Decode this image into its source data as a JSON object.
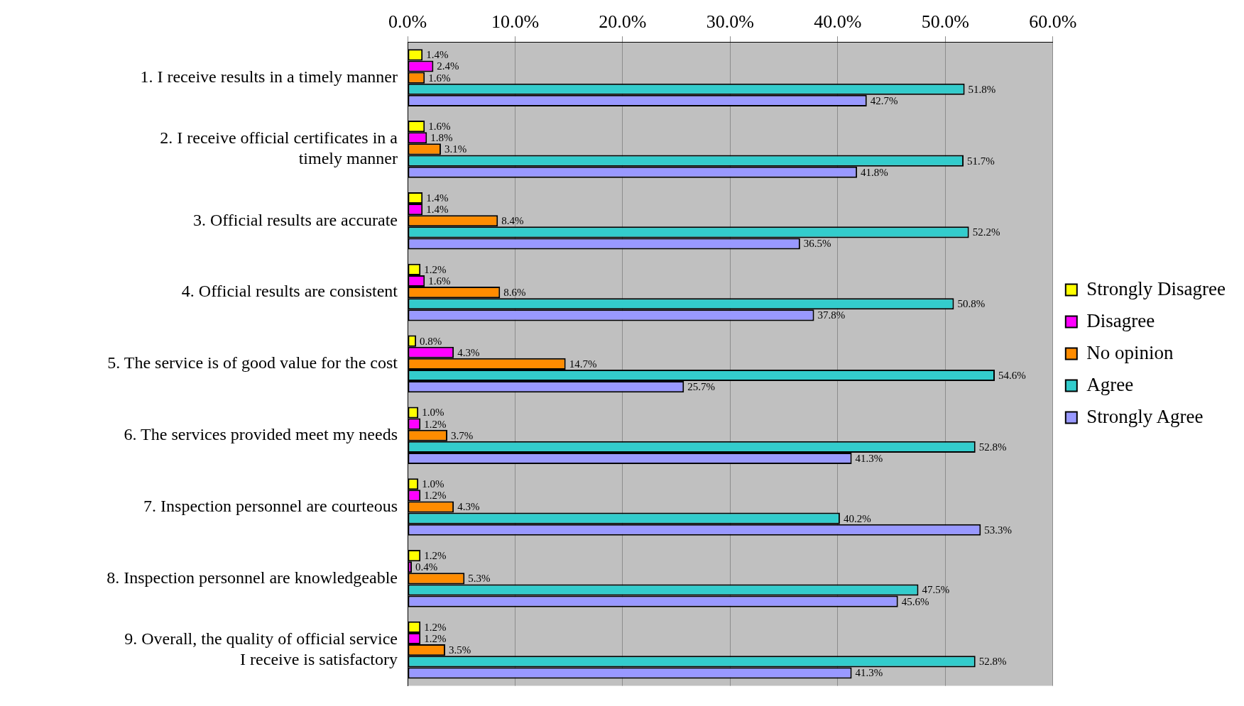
{
  "chart_data": {
    "type": "bar",
    "orientation": "horizontal",
    "categories": [
      "1. I receive results in a timely manner",
      "2. I receive official certificates in a timely manner",
      "3. Official results are accurate",
      "4. Official results are consistent",
      "5. The service is of good value for the cost",
      "6. The services provided meet my needs",
      "7. Inspection personnel are courteous",
      "8. Inspection personnel are knowledgeable",
      "9. Overall, the quality of official service I receive is satisfactory"
    ],
    "series": [
      {
        "name": "Strongly Disagree",
        "color": "#ffff00",
        "values": [
          1.4,
          1.6,
          1.4,
          1.2,
          0.8,
          1.0,
          1.0,
          1.2,
          1.2
        ],
        "value_labels": [
          "1.4%",
          "1.6%",
          "1.4%",
          "1.2%",
          "0.8%",
          "1.0%",
          "1.0%",
          "1.2%",
          "1.2%"
        ]
      },
      {
        "name": "Disagree",
        "color": "#ff00ff",
        "values": [
          2.4,
          1.8,
          1.4,
          1.6,
          4.3,
          1.2,
          1.2,
          0.4,
          1.2
        ],
        "value_labels": [
          "2.4%",
          "1.8%",
          "1.4%",
          "1.6%",
          "4.3%",
          "1.2%",
          "1.2%",
          "0.4%",
          "1.2%"
        ]
      },
      {
        "name": "No opinion",
        "color": "#ff8c00",
        "values": [
          1.6,
          3.1,
          8.4,
          8.6,
          14.7,
          3.7,
          4.3,
          5.3,
          3.5
        ],
        "value_labels": [
          "1.6%",
          "3.1%",
          "8.4%",
          "8.6%",
          "14.7%",
          "3.7%",
          "4.3%",
          "5.3%",
          "3.5%"
        ]
      },
      {
        "name": "Agree",
        "color": "#33cccc",
        "values": [
          51.8,
          51.7,
          52.2,
          50.8,
          54.6,
          52.8,
          40.2,
          47.5,
          52.8
        ],
        "value_labels": [
          "51.8%",
          "51.7%",
          "52.2%",
          "50.8%",
          "54.6%",
          "52.8%",
          "40.2%",
          "47.5%",
          "52.8%"
        ]
      },
      {
        "name": "Strongly Agree",
        "color": "#9999ff",
        "values": [
          42.7,
          41.8,
          36.5,
          37.8,
          25.7,
          41.3,
          53.3,
          45.6,
          41.3
        ],
        "value_labels": [
          "42.7%",
          "41.8%",
          "36.5%",
          "37.8%",
          "25.7%",
          "41.3%",
          "53.3%",
          "45.6%",
          "41.3%"
        ]
      }
    ],
    "xlim": [
      0,
      60
    ],
    "xticks": [
      {
        "value": 0,
        "label": "0.0%"
      },
      {
        "value": 10,
        "label": "10.0%"
      },
      {
        "value": 20,
        "label": "20.0%"
      },
      {
        "value": 30,
        "label": "30.0%"
      },
      {
        "value": 40,
        "label": "40.0%"
      },
      {
        "value": 50,
        "label": "50.0%"
      },
      {
        "value": 60,
        "label": "60.0%"
      }
    ],
    "grid": "x",
    "legend": "right"
  }
}
